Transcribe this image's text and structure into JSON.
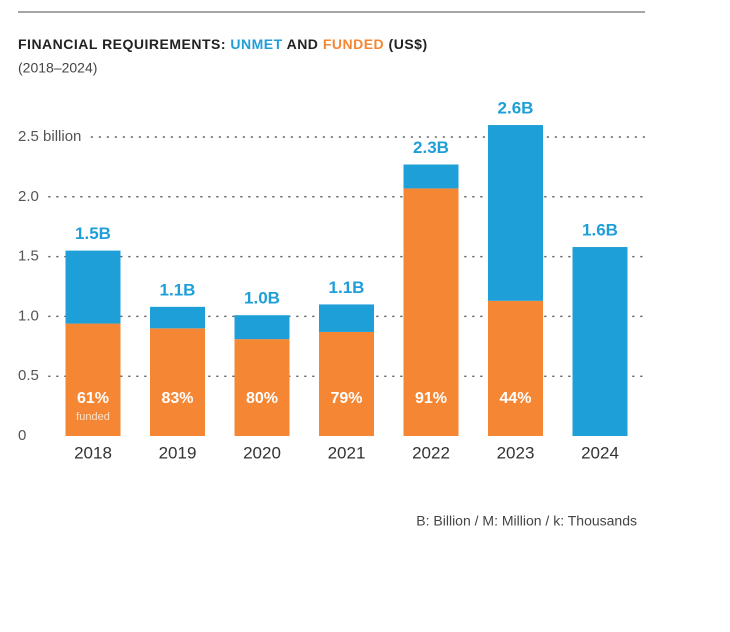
{
  "chart_data": {
    "type": "stacked-bar",
    "title_prefix": "FINANCIAL REQUIREMENTS:",
    "title_joiner": "AND",
    "title_suffix": "(US$)",
    "subtitle": "(2018–2024)",
    "footnote": "B: Billion / M: Million / k: Thousands",
    "categories": [
      "2018",
      "2019",
      "2020",
      "2021",
      "2022",
      "2023",
      "2024"
    ],
    "series": [
      {
        "name": "FUNDED",
        "color": "#f58634",
        "values": [
          0.94,
          0.9,
          0.81,
          0.87,
          2.07,
          1.13,
          0
        ]
      },
      {
        "name": "UNMET",
        "color": "#1f9fd8",
        "values": [
          0.61,
          0.18,
          0.2,
          0.23,
          0.2,
          1.47,
          1.58
        ]
      }
    ],
    "totals": {
      "values": [
        1.55,
        1.08,
        1.01,
        1.1,
        2.27,
        2.6,
        1.58
      ],
      "value_labels": [
        "1.5B",
        "1.1B",
        "1.0B",
        "1.1B",
        "2.3B",
        "2.6B",
        "1.6B"
      ]
    },
    "percent_funded": {
      "values": [
        61,
        83,
        80,
        79,
        91,
        44,
        null
      ],
      "value_labels": [
        "61%",
        "83%",
        "80%",
        "79%",
        "91%",
        "44%",
        null
      ]
    },
    "percent_note": "funded",
    "ylim": [
      0,
      2.5
    ],
    "yticks": [
      0,
      0.5,
      {
        "value": 1,
        "label": "1.0"
      },
      1.5,
      {
        "value": 2,
        "label": "2.0"
      },
      {
        "value": 2.5,
        "label": "2.5 billion"
      }
    ],
    "grid": true
  }
}
